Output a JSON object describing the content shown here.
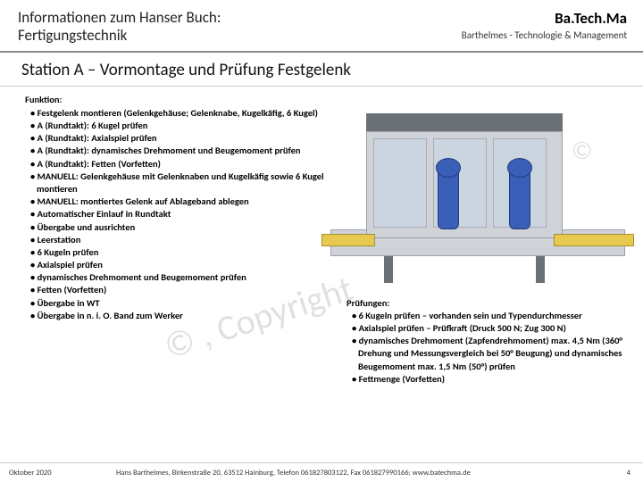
{
  "header": {
    "title_line1": "Informationen zum Hanser Buch:",
    "title_line2": "Fertigungstechnik",
    "brand": "Ba.Tech.Ma",
    "tagline": "Barthelmes - Technologie & Management"
  },
  "section_title": "Station A – Vormontage und Prüfung Festgelenk",
  "left": {
    "label": "Funktion:",
    "items": [
      "• Festgelenk montieren (Gelenkgehäuse; Gelenknabe, Kugelkäfig, 6 Kugel)",
      "• A (Rundtakt): 6 Kugel prüfen",
      "• A (Rundtakt): Axialspiel prüfen",
      "• A (Rundtakt): dynamisches Drehmoment und Beugemoment prüfen",
      "• A (Rundtakt): Fetten (Vorfetten)",
      "• MANUELL: Gelenkgehäuse mit Gelenknaben und Kugelkäfig sowie 6 Kugel montieren",
      "• MANUELL: montiertes Gelenk auf Ablageband ablegen",
      "• Automatischer Einlauf in Rundtakt",
      "• Übergabe und ausrichten",
      "• Leerstation",
      "• 6 Kugeln prüfen",
      "• Axialspiel prüfen",
      "• dynamisches Drehmoment und Beugemoment prüfen",
      "• Fetten (Vorfetten)",
      "• Übergabe in WT",
      "• Übergabe in n. i. O. Band zum Werker"
    ]
  },
  "right": {
    "label": "Prüfungen:",
    "items": [
      "• 6 Kugeln prüfen – vorhanden sein und Typendurchmesser",
      "• Axialspiel prüfen – Prüfkraft (Druck 500 N; Zug 300 N)",
      "• dynamisches Drehmoment (Zapfendrehmoment) max. 4,5 Nm (360° Drehung und Messungsvergleich bei 50° Beugung) und dynamisches Beugemoment max. 1,5 Nm (50°) prüfen",
      "• Fettmenge (Vorfetten)"
    ]
  },
  "watermark": {
    "text1": "© , Copyright",
    "textc": "©"
  },
  "footer": {
    "date": "Oktober 2020",
    "mid": "Hans Barthelmes, Birkenstraße 20, 63512 Hainburg, Telefon 061827803122, Fax 061827990166; www.batechma.de",
    "page": "4"
  },
  "colors": {
    "border": "#888888",
    "text": "#000000",
    "machine_frame": "#cfd3d7",
    "machine_blue": "#3a5fb8",
    "machine_yellow": "#e7c94f"
  }
}
